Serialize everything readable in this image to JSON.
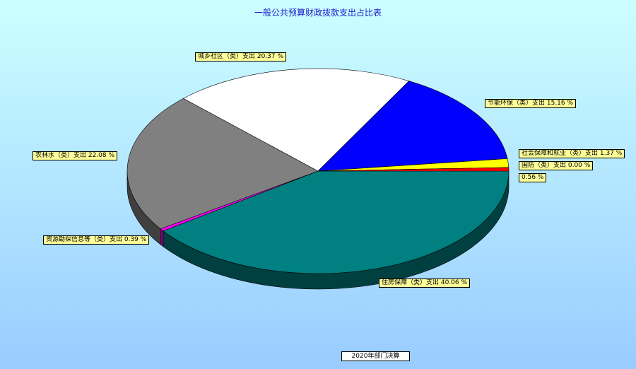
{
  "chart_data": {
    "type": "pie",
    "title": "一般公共预算财政拨款支出占比表",
    "legend": [
      "2020年部门决算"
    ],
    "legend_placement": "bottom",
    "slices": [
      {
        "label": "住房保障（类）支出 40.06 %",
        "value": 40.06,
        "color": "#008080"
      },
      {
        "label": "资源勘探信息等（类）支出 0.39 %",
        "value": 0.39,
        "color": "#ff00ff"
      },
      {
        "label": "农林水（类）支出 22.08 %",
        "value": 22.08,
        "color": "#808080"
      },
      {
        "label": "城乡社区（类）支出 20.37 %",
        "value": 20.37,
        "color": "#ffffff"
      },
      {
        "label": "节能环保（类）支出 15.16 %",
        "value": 15.16,
        "color": "#0000ff"
      },
      {
        "label": "社会保障和就业（类）支出 1.37 %",
        "value": 1.37,
        "color": "#ffff00"
      },
      {
        "label": "0.56 %",
        "value": 0.56,
        "color": "#ff0000"
      },
      {
        "label": "国防（类）支出 0.00 %",
        "value": 0.0,
        "color": "#000000"
      }
    ]
  }
}
